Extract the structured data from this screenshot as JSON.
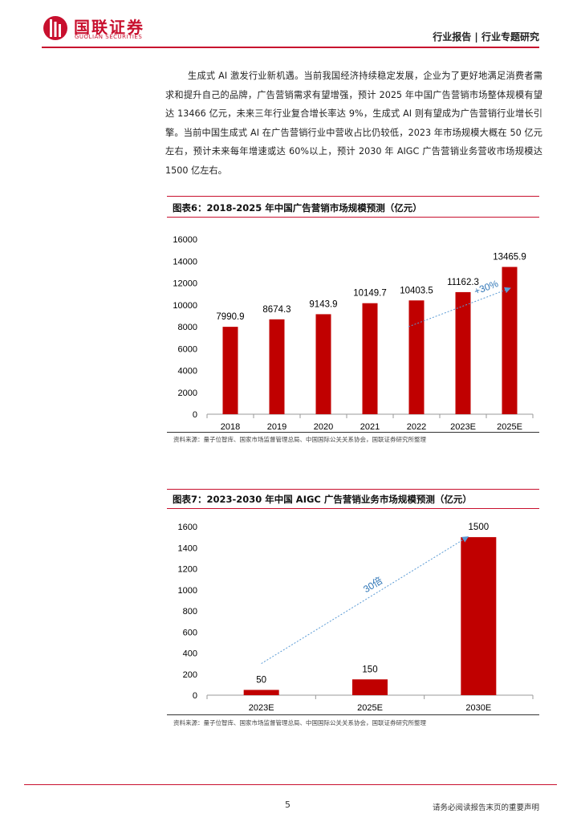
{
  "header": {
    "logo_cn": "国联证券",
    "logo_en": "GUOLIAN SECURITIES",
    "right_text": "行业报告 | 行业专题研究"
  },
  "body_paragraph": "生成式 AI 激发行业新机遇。当前我国经济持续稳定发展，企业为了更好地满足消费者需求和提升自己的品牌，广告营销需求有望增强，预计 2025 年中国广告营销市场整体规模有望达 13466 亿元，未来三年行业复合增长率达 9%，生成式 AI 则有望成为广告营销行业增长引擎。当前中国生成式 AI 在广告营销行业中营收占比仍较低，2023 年市场规模大概在 50 亿元左右，预计未来每年增速或达 60%以上，预计 2030 年 AIGC 广告营销业务营收市场规模达 1500 亿左右。",
  "figure6": {
    "title": "图表6：2018-2025 年中国广告营销市场规模预测（亿元）",
    "source": "资料来源：量子位智库、国家市场监督管理总局、中国国际公关关系协会，国联证券研究所整理"
  },
  "figure7": {
    "title": "图表7：2023-2030 年中国 AIGC 广告营销业务市场规模预测（亿元）",
    "source": "资料来源：量子位智库、国家市场监督管理总局、中国国际公关关系协会，国联证券研究所整理"
  },
  "chart_data": [
    {
      "type": "bar",
      "categories": [
        "2018",
        "2019",
        "2020",
        "2021",
        "2022",
        "2023E",
        "2025E"
      ],
      "values": [
        7990.9,
        8674.3,
        9143.9,
        10149.7,
        10403.5,
        11162.3,
        13465.9
      ],
      "labels": [
        "7990.9",
        "8674.3",
        "9143.9",
        "10149.7",
        "10403.5",
        "11162.3",
        "13465.9"
      ],
      "yticks": [
        "0",
        "2000",
        "4000",
        "6000",
        "8000",
        "10000",
        "12000",
        "14000",
        "16000"
      ],
      "ylim": [
        0,
        16000
      ],
      "annotation": "+30%",
      "arrow": {
        "from": [
          4,
          8000
        ],
        "to": [
          6,
          11500
        ]
      },
      "bar_color": "#c00000",
      "arrow_color": "#5b9bd5",
      "grid": false
    },
    {
      "type": "bar",
      "categories": [
        "2023E",
        "2025E",
        "2030E"
      ],
      "values": [
        50,
        150,
        1500
      ],
      "labels": [
        "50",
        "150",
        "1500"
      ],
      "yticks": [
        "0",
        "200",
        "400",
        "600",
        "800",
        "1000",
        "1200",
        "1400",
        "1600"
      ],
      "ylim": [
        0,
        1600
      ],
      "annotation": "30倍",
      "arrow": {
        "from": [
          0,
          300
        ],
        "to": [
          2,
          1500
        ]
      },
      "bar_color": "#c00000",
      "arrow_color": "#5b9bd5",
      "grid": false
    }
  ],
  "footer": {
    "page_number": "5",
    "disclaimer": "请务必阅读报告末页的重要声明"
  }
}
